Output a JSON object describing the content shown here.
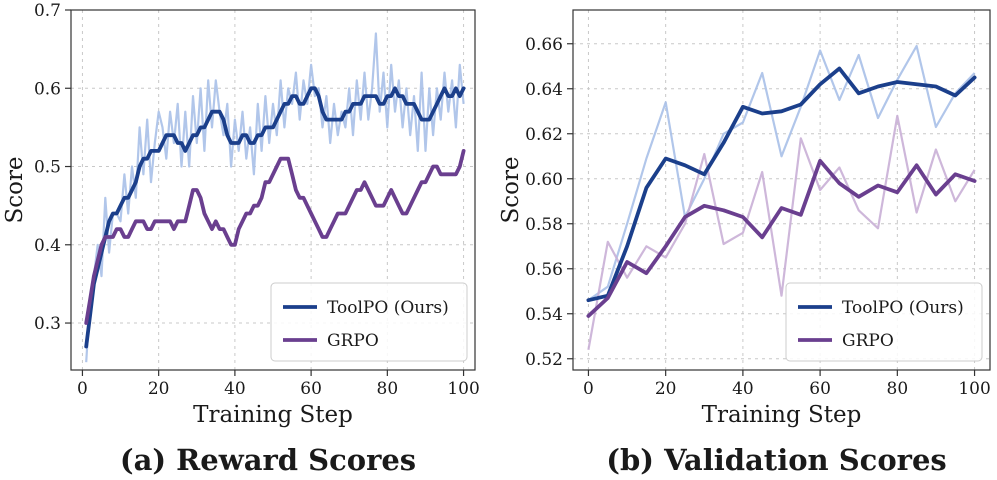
{
  "chart_data": [
    {
      "type": "line",
      "title": "(a) Reward Scores",
      "xlabel": "Training Step",
      "ylabel": "Score",
      "xlim": [
        -3,
        103
      ],
      "ylim": [
        0.24,
        0.7
      ],
      "xticks": [
        0,
        20,
        40,
        60,
        80,
        100
      ],
      "yticks": [
        0.3,
        0.4,
        0.5,
        0.6,
        0.7
      ],
      "ytick_labels": [
        "0.3",
        "0.4",
        "0.5",
        "0.6",
        "0.7"
      ],
      "grid": true,
      "legend": "bottom-right",
      "x": [
        1,
        2,
        3,
        4,
        5,
        6,
        7,
        8,
        9,
        10,
        11,
        12,
        13,
        14,
        15,
        16,
        17,
        18,
        19,
        20,
        21,
        22,
        23,
        24,
        25,
        26,
        27,
        28,
        29,
        30,
        31,
        32,
        33,
        34,
        35,
        36,
        37,
        38,
        39,
        40,
        41,
        42,
        43,
        44,
        45,
        46,
        47,
        48,
        49,
        50,
        51,
        52,
        53,
        54,
        55,
        56,
        57,
        58,
        59,
        60,
        61,
        62,
        63,
        64,
        65,
        66,
        67,
        68,
        69,
        70,
        71,
        72,
        73,
        74,
        75,
        76,
        77,
        78,
        79,
        80,
        81,
        82,
        83,
        84,
        85,
        86,
        87,
        88,
        89,
        90,
        91,
        92,
        93,
        94,
        95,
        96,
        97,
        98,
        99,
        100
      ],
      "series": [
        {
          "name": "ToolPO (Ours)",
          "color": "#1b3f8b",
          "raw_color": "#a9c0e8",
          "smoothed": [
            0.27,
            0.31,
            0.35,
            0.37,
            0.39,
            0.41,
            0.43,
            0.44,
            0.44,
            0.45,
            0.46,
            0.46,
            0.47,
            0.48,
            0.5,
            0.51,
            0.51,
            0.52,
            0.52,
            0.52,
            0.53,
            0.54,
            0.54,
            0.54,
            0.53,
            0.53,
            0.52,
            0.53,
            0.54,
            0.54,
            0.55,
            0.55,
            0.56,
            0.57,
            0.57,
            0.57,
            0.56,
            0.54,
            0.53,
            0.53,
            0.53,
            0.54,
            0.54,
            0.53,
            0.53,
            0.54,
            0.54,
            0.55,
            0.55,
            0.55,
            0.56,
            0.57,
            0.58,
            0.58,
            0.59,
            0.59,
            0.58,
            0.58,
            0.59,
            0.6,
            0.6,
            0.59,
            0.57,
            0.56,
            0.56,
            0.56,
            0.56,
            0.56,
            0.57,
            0.57,
            0.58,
            0.58,
            0.58,
            0.59,
            0.59,
            0.59,
            0.59,
            0.58,
            0.58,
            0.59,
            0.59,
            0.6,
            0.59,
            0.59,
            0.58,
            0.58,
            0.58,
            0.57,
            0.56,
            0.56,
            0.56,
            0.57,
            0.58,
            0.59,
            0.6,
            0.59,
            0.59,
            0.6,
            0.59,
            0.6
          ],
          "raw": [
            0.25,
            0.33,
            0.36,
            0.4,
            0.36,
            0.46,
            0.39,
            0.44,
            0.44,
            0.43,
            0.49,
            0.44,
            0.5,
            0.46,
            0.55,
            0.49,
            0.56,
            0.48,
            0.53,
            0.57,
            0.55,
            0.51,
            0.57,
            0.53,
            0.58,
            0.5,
            0.57,
            0.5,
            0.59,
            0.53,
            0.6,
            0.52,
            0.61,
            0.55,
            0.61,
            0.57,
            0.54,
            0.58,
            0.5,
            0.56,
            0.52,
            0.57,
            0.51,
            0.55,
            0.49,
            0.58,
            0.52,
            0.59,
            0.53,
            0.58,
            0.54,
            0.61,
            0.55,
            0.6,
            0.58,
            0.62,
            0.56,
            0.61,
            0.58,
            0.63,
            0.59,
            0.6,
            0.55,
            0.59,
            0.53,
            0.58,
            0.54,
            0.57,
            0.55,
            0.6,
            0.54,
            0.61,
            0.56,
            0.62,
            0.56,
            0.6,
            0.67,
            0.57,
            0.62,
            0.55,
            0.63,
            0.57,
            0.61,
            0.55,
            0.6,
            0.54,
            0.59,
            0.52,
            0.62,
            0.52,
            0.6,
            0.54,
            0.6,
            0.56,
            0.62,
            0.57,
            0.61,
            0.55,
            0.63,
            0.58
          ]
        },
        {
          "name": "GRPO",
          "color": "#6a3f8f",
          "raw_color": "#c9afd6",
          "smoothed": [
            0.3,
            0.33,
            0.36,
            0.38,
            0.4,
            0.41,
            0.41,
            0.41,
            0.42,
            0.42,
            0.41,
            0.41,
            0.42,
            0.43,
            0.43,
            0.43,
            0.42,
            0.42,
            0.43,
            0.43,
            0.43,
            0.43,
            0.43,
            0.42,
            0.43,
            0.43,
            0.43,
            0.45,
            0.47,
            0.47,
            0.46,
            0.44,
            0.43,
            0.42,
            0.43,
            0.42,
            0.42,
            0.41,
            0.4,
            0.4,
            0.42,
            0.43,
            0.44,
            0.44,
            0.45,
            0.45,
            0.46,
            0.48,
            0.48,
            0.49,
            0.5,
            0.51,
            0.51,
            0.51,
            0.49,
            0.47,
            0.46,
            0.46,
            0.45,
            0.44,
            0.43,
            0.42,
            0.41,
            0.41,
            0.42,
            0.43,
            0.44,
            0.44,
            0.44,
            0.45,
            0.46,
            0.47,
            0.47,
            0.48,
            0.47,
            0.46,
            0.45,
            0.45,
            0.45,
            0.46,
            0.47,
            0.46,
            0.45,
            0.44,
            0.44,
            0.45,
            0.46,
            0.47,
            0.48,
            0.48,
            0.49,
            0.5,
            0.5,
            0.49,
            0.49,
            0.49,
            0.49,
            0.49,
            0.5,
            0.52
          ]
        }
      ]
    },
    {
      "type": "line",
      "title": "(b) Validation Scores",
      "xlabel": "Training Step",
      "ylabel": "Score",
      "xlim": [
        -4,
        104
      ],
      "ylim": [
        0.515,
        0.675
      ],
      "xticks": [
        0,
        20,
        40,
        60,
        80,
        100
      ],
      "yticks": [
        0.52,
        0.54,
        0.56,
        0.58,
        0.6,
        0.62,
        0.64,
        0.66
      ],
      "ytick_labels": [
        "0.52",
        "0.54",
        "0.56",
        "0.58",
        "0.60",
        "0.62",
        "0.64",
        "0.66"
      ],
      "grid": true,
      "legend": "bottom-right",
      "x": [
        0,
        5,
        10,
        15,
        20,
        25,
        30,
        35,
        40,
        45,
        50,
        55,
        60,
        65,
        70,
        75,
        80,
        85,
        90,
        95,
        100
      ],
      "series": [
        {
          "name": "ToolPO (Ours)",
          "color": "#1b3f8b",
          "raw_color": "#a9c0e8",
          "smoothed": [
            0.546,
            0.548,
            0.57,
            0.596,
            0.609,
            0.606,
            0.602,
            0.616,
            0.632,
            0.629,
            0.63,
            0.633,
            0.642,
            0.649,
            0.638,
            0.641,
            0.643,
            0.642,
            0.641,
            0.637,
            0.645
          ],
          "raw": [
            0.546,
            0.552,
            0.58,
            0.609,
            0.634,
            0.583,
            0.6,
            0.62,
            0.625,
            0.647,
            0.61,
            0.632,
            0.657,
            0.635,
            0.655,
            0.627,
            0.644,
            0.659,
            0.623,
            0.638,
            0.647
          ]
        },
        {
          "name": "GRPO",
          "color": "#6a3f8f",
          "raw_color": "#c9afd6",
          "smoothed": [
            0.539,
            0.547,
            0.563,
            0.558,
            0.57,
            0.583,
            0.588,
            0.586,
            0.583,
            0.574,
            0.587,
            0.584,
            0.608,
            0.598,
            0.592,
            0.597,
            0.594,
            0.606,
            0.593,
            0.602,
            0.599
          ],
          "raw": [
            0.524,
            0.572,
            0.556,
            0.57,
            0.565,
            0.58,
            0.611,
            0.571,
            0.576,
            0.603,
            0.548,
            0.618,
            0.595,
            0.605,
            0.586,
            0.578,
            0.628,
            0.585,
            0.613,
            0.59,
            0.604
          ]
        }
      ]
    }
  ]
}
